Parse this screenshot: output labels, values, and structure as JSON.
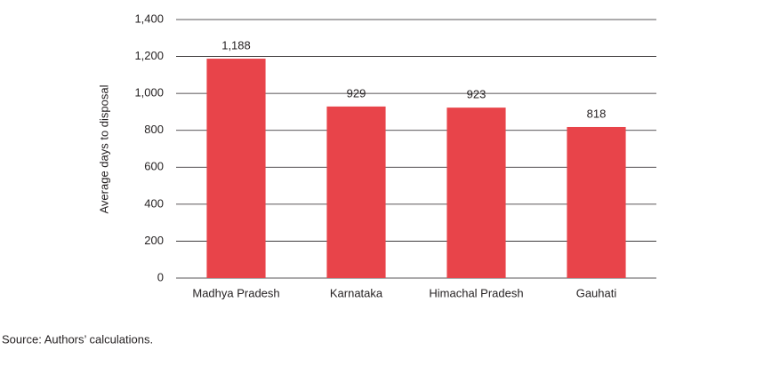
{
  "chart_data": {
    "type": "bar",
    "y_label": "Average days to disposal",
    "categories": [
      "Madhya Pradesh",
      "Karnataka",
      "Himachal Pradesh",
      "Gauhati"
    ],
    "values": [
      1188,
      929,
      923,
      818
    ],
    "value_labels": [
      "1,188",
      "929",
      "923",
      "818"
    ],
    "color": "#e8444a",
    "ylim": [
      0,
      1400
    ],
    "yticks": [
      0,
      200,
      400,
      600,
      800,
      {
        "value": 1000,
        "label": "1,000"
      },
      {
        "value": 1200,
        "label": "1,200"
      },
      {
        "value": 1400,
        "label": "1,400"
      }
    ],
    "grid": true,
    "source": "Source: Authors’ calculations."
  }
}
